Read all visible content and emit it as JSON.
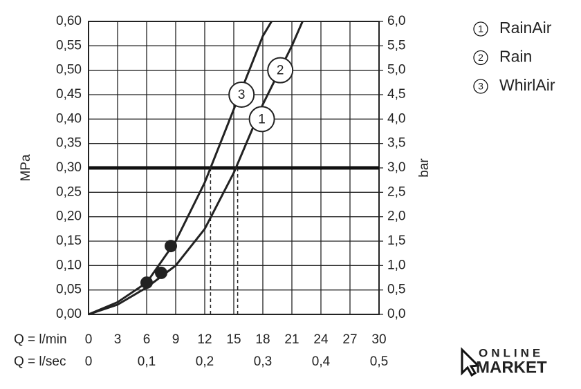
{
  "chart_data": {
    "type": "line",
    "y_label": "MPa",
    "y2_label": "bar",
    "x_label": "Q = l/min",
    "x2_label": "Q = l/sec",
    "xlim": [
      0,
      30
    ],
    "xticks": [
      0,
      3,
      6,
      9,
      12,
      15,
      18,
      21,
      24,
      27,
      30
    ],
    "x2lim": [
      0,
      0.5
    ],
    "x2ticks": [
      0,
      {
        "value": 0.1,
        "label": "0,1"
      },
      {
        "value": 0.2,
        "label": "0,2"
      },
      {
        "value": 0.3,
        "label": "0,3"
      },
      {
        "value": 0.4,
        "label": "0,4"
      },
      {
        "value": 0.5,
        "label": "0,5"
      }
    ],
    "ylim": [
      0,
      0.6
    ],
    "yticks": [
      {
        "value": 0,
        "label": "0,00"
      },
      {
        "value": 0.05,
        "label": "0,05"
      },
      {
        "value": 0.1,
        "label": "0,10"
      },
      {
        "value": 0.15,
        "label": "0,15"
      },
      {
        "value": 0.2,
        "label": "0,20"
      },
      {
        "value": 0.25,
        "label": "0,25"
      },
      {
        "value": 0.3,
        "label": "0,30"
      },
      {
        "value": 0.35,
        "label": "0,35"
      },
      {
        "value": 0.4,
        "label": "0,40"
      },
      {
        "value": 0.45,
        "label": "0,45"
      },
      {
        "value": 0.5,
        "label": "0,50"
      },
      {
        "value": 0.55,
        "label": "0,55"
      },
      {
        "value": 0.6,
        "label": "0,60"
      }
    ],
    "y2lim": [
      0,
      6
    ],
    "y2ticks": [
      {
        "value": 0,
        "label": "0,0"
      },
      {
        "value": 0.5,
        "label": "0,5"
      },
      {
        "value": 1,
        "label": "1,0"
      },
      {
        "value": 1.5,
        "label": "1,5"
      },
      {
        "value": 2,
        "label": "2,0"
      },
      {
        "value": 2.5,
        "label": "2,5"
      },
      {
        "value": 3,
        "label": "3,0"
      },
      {
        "value": 3.5,
        "label": "3,5"
      },
      {
        "value": 4,
        "label": "4,0"
      },
      {
        "value": 4.5,
        "label": "4,5"
      },
      {
        "value": 5,
        "label": "5,0"
      },
      {
        "value": 5.5,
        "label": "5,5"
      },
      {
        "value": 6,
        "label": "6,0"
      }
    ],
    "grid": true,
    "series": [
      {
        "color": "#222222",
        "x": [
          0,
          3,
          6,
          9,
          12,
          15,
          18,
          21,
          22.1
        ],
        "values": [
          0,
          0.02,
          0.055,
          0.1,
          0.175,
          0.29,
          0.43,
          0.55,
          0.6
        ]
      },
      {
        "color": "#222222",
        "x": [
          0,
          3,
          6,
          9,
          12,
          15,
          18,
          18.9
        ],
        "values": [
          0,
          0.025,
          0.065,
          0.15,
          0.27,
          0.42,
          0.57,
          0.6
        ]
      }
    ],
    "points": {
      "color": "#222222",
      "x": [
        6,
        7.5,
        8.5
      ],
      "values": [
        0.065,
        0.085,
        0.14
      ]
    },
    "threshold": 0.3,
    "reference_x": [
      12.6,
      15.4
    ],
    "annotations": [
      {
        "text": "3",
        "x": 15.8,
        "y": 0.45
      },
      {
        "text": "1",
        "x": 17.9,
        "y": 0.4
      },
      {
        "text": "2",
        "x": 19.8,
        "y": 0.5
      }
    ],
    "legend": [
      {
        "number": "1",
        "label": "RainAir"
      },
      {
        "number": "2",
        "label": "Rain"
      },
      {
        "number": "3",
        "label": "WhirlAir"
      }
    ],
    "logo": {
      "top": "ONLINE",
      "bottom": "MARKET"
    }
  }
}
